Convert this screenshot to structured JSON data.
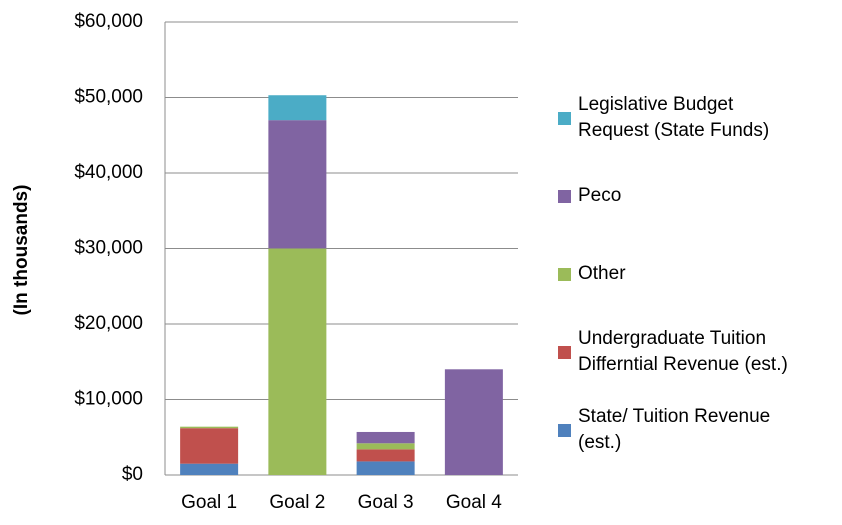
{
  "chart_data": {
    "type": "stacked_bar",
    "y_label": "(In thousands)",
    "categories": [
      "Goal 1",
      "Goal 2",
      "Goal 3",
      "Goal 4"
    ],
    "series": [
      {
        "name": "State/ Tuition Revenue (est.)",
        "color": "#4f81bd",
        "values": [
          1500,
          0,
          1800,
          0
        ]
      },
      {
        "name": "Undergraduate Tuition Differntial Revenue (est.)",
        "color": "#c0504d",
        "values": [
          4700,
          0,
          1600,
          0
        ]
      },
      {
        "name": "Other",
        "color": "#9bbb59",
        "values": [
          200,
          30000,
          800,
          0
        ]
      },
      {
        "name": "Peco",
        "color": "#8064a2",
        "values": [
          0,
          17000,
          1500,
          14000
        ]
      },
      {
        "name": "Legislative Budget Request (State Funds)",
        "color": "#4bacc6",
        "values": [
          0,
          3300,
          0,
          0
        ]
      }
    ],
    "ylim": [
      0,
      60000
    ],
    "yticks": [
      {
        "value": 0,
        "label": "$0"
      },
      {
        "value": 10000,
        "label": "$10,000"
      },
      {
        "value": 20000,
        "label": "$20,000"
      },
      {
        "value": 30000,
        "label": "$30,000"
      },
      {
        "value": 40000,
        "label": "$40,000"
      },
      {
        "value": 50000,
        "label": "$50,000"
      },
      {
        "value": 60000,
        "label": "$60,000"
      }
    ],
    "grid": true
  }
}
